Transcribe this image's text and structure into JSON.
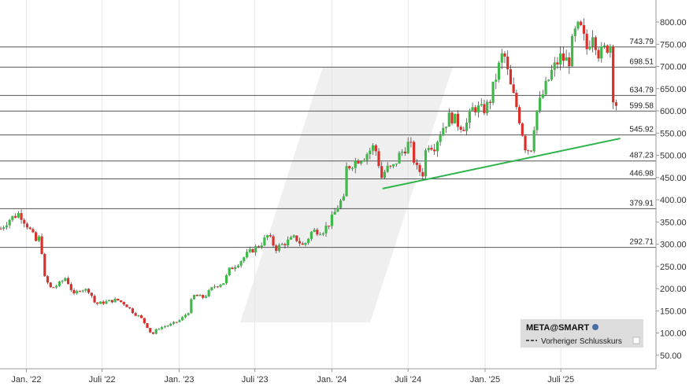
{
  "chart_data": {
    "type": "candlestick",
    "title": "",
    "symbol_label": "META@SMART",
    "legend": {
      "position": "bottom-right",
      "entries": [
        "Vorheriger Schlusskurs"
      ]
    },
    "grid": true,
    "y_axis": {
      "position": "right",
      "range": [
        0,
        830
      ],
      "ticks": [
        50,
        100,
        150,
        200,
        250,
        300,
        350,
        400,
        450,
        500,
        550,
        600,
        650,
        700,
        750,
        800
      ],
      "tick_labels": [
        "50.00",
        "100.00",
        "150.00",
        "200.00",
        "250.00",
        "300.00",
        "350.00",
        "400.00",
        "450.00",
        "500.00",
        "550.00",
        "600.00",
        "650.00",
        "700.00",
        "750.00",
        "800.00"
      ]
    },
    "x_axis": {
      "range": [
        "2021-11-01",
        "2025-11-30"
      ],
      "ticks": [
        {
          "date": "2022-01-01",
          "label": "Jan. '22"
        },
        {
          "date": "2022-07-01",
          "label": "Juli '22"
        },
        {
          "date": "2023-01-01",
          "label": "Jan. '23"
        },
        {
          "date": "2023-07-01",
          "label": "Juli '23"
        },
        {
          "date": "2024-01-01",
          "label": "Jan. '24"
        },
        {
          "date": "2024-07-01",
          "label": "Juli '24"
        },
        {
          "date": "2025-01-01",
          "label": "Jan. '25"
        },
        {
          "date": "2025-07-01",
          "label": "Juli '25"
        }
      ]
    },
    "horizontal_levels": [
      743.79,
      698.51,
      634.79,
      599.58,
      545.92,
      487.23,
      446.98,
      379.91,
      292.71
    ],
    "horizontal_level_labels": [
      "743.79",
      "698.51",
      "634.79",
      "599.58",
      "545.92",
      "487.23",
      "446.98",
      "379.91",
      "292.71"
    ],
    "trendline": {
      "from": {
        "date": "2024-05-01",
        "value": 425
      },
      "to": {
        "date": "2025-11-20",
        "value": 538
      },
      "color": "#2db34a"
    },
    "series_path": [
      [
        "2021-11-01",
        335
      ],
      [
        "2021-11-20",
        355
      ],
      [
        "2021-12-15",
        370
      ],
      [
        "2022-01-05",
        340
      ],
      [
        "2022-01-25",
        305
      ],
      [
        "2022-02-05",
        320
      ],
      [
        "2022-02-10",
        230
      ],
      [
        "2022-03-01",
        200
      ],
      [
        "2022-03-20",
        210
      ],
      [
        "2022-04-05",
        225
      ],
      [
        "2022-04-25",
        185
      ],
      [
        "2022-05-10",
        200
      ],
      [
        "2022-06-01",
        195
      ],
      [
        "2022-06-15",
        165
      ],
      [
        "2022-07-10",
        170
      ],
      [
        "2022-08-05",
        175
      ],
      [
        "2022-08-25",
        165
      ],
      [
        "2022-09-15",
        145
      ],
      [
        "2022-10-01",
        135
      ],
      [
        "2022-10-20",
        110
      ],
      [
        "2022-10-28",
        95
      ],
      [
        "2022-11-10",
        110
      ],
      [
        "2022-12-15",
        120
      ],
      [
        "2023-01-05",
        130
      ],
      [
        "2023-01-25",
        150
      ],
      [
        "2023-02-02",
        185
      ],
      [
        "2023-03-01",
        180
      ],
      [
        "2023-03-25",
        205
      ],
      [
        "2023-04-20",
        215
      ],
      [
        "2023-04-28",
        240
      ],
      [
        "2023-05-25",
        260
      ],
      [
        "2023-06-15",
        280
      ],
      [
        "2023-07-15",
        300
      ],
      [
        "2023-08-01",
        320
      ],
      [
        "2023-08-20",
        290
      ],
      [
        "2023-09-15",
        305
      ],
      [
        "2023-10-05",
        315
      ],
      [
        "2023-10-25",
        295
      ],
      [
        "2023-11-15",
        330
      ],
      [
        "2023-12-10",
        330
      ],
      [
        "2023-12-28",
        350
      ],
      [
        "2024-01-20",
        395
      ],
      [
        "2024-02-01",
        400
      ],
      [
        "2024-02-03",
        470
      ],
      [
        "2024-03-01",
        490
      ],
      [
        "2024-03-20",
        500
      ],
      [
        "2024-04-10",
        520
      ],
      [
        "2024-04-20",
        500
      ],
      [
        "2024-04-26",
        445
      ],
      [
        "2024-05-10",
        470
      ],
      [
        "2024-05-25",
        470
      ],
      [
        "2024-06-10",
        500
      ],
      [
        "2024-07-05",
        530
      ],
      [
        "2024-07-20",
        470
      ],
      [
        "2024-08-05",
        460
      ],
      [
        "2024-08-15",
        530
      ],
      [
        "2024-09-01",
        520
      ],
      [
        "2024-09-20",
        560
      ],
      [
        "2024-10-10",
        590
      ],
      [
        "2024-10-30",
        570
      ],
      [
        "2024-11-15",
        565
      ],
      [
        "2024-12-05",
        610
      ],
      [
        "2024-12-25",
        600
      ],
      [
        "2025-01-10",
        615
      ],
      [
        "2025-01-28",
        680
      ],
      [
        "2025-02-14",
        735
      ],
      [
        "2025-03-01",
        660
      ],
      [
        "2025-03-20",
        600
      ],
      [
        "2025-04-07",
        520
      ],
      [
        "2025-04-20",
        510
      ],
      [
        "2025-05-01",
        590
      ],
      [
        "2025-05-20",
        640
      ],
      [
        "2025-06-10",
        690
      ],
      [
        "2025-06-30",
        720
      ],
      [
        "2025-07-20",
        710
      ],
      [
        "2025-08-01",
        770
      ],
      [
        "2025-08-15",
        790
      ],
      [
        "2025-09-01",
        740
      ],
      [
        "2025-09-15",
        780
      ],
      [
        "2025-10-01",
        725
      ],
      [
        "2025-10-20",
        745
      ],
      [
        "2025-10-28",
        750
      ],
      [
        "2025-10-31",
        650
      ],
      [
        "2025-11-05",
        625
      ],
      [
        "2025-11-12",
        612
      ]
    ]
  }
}
